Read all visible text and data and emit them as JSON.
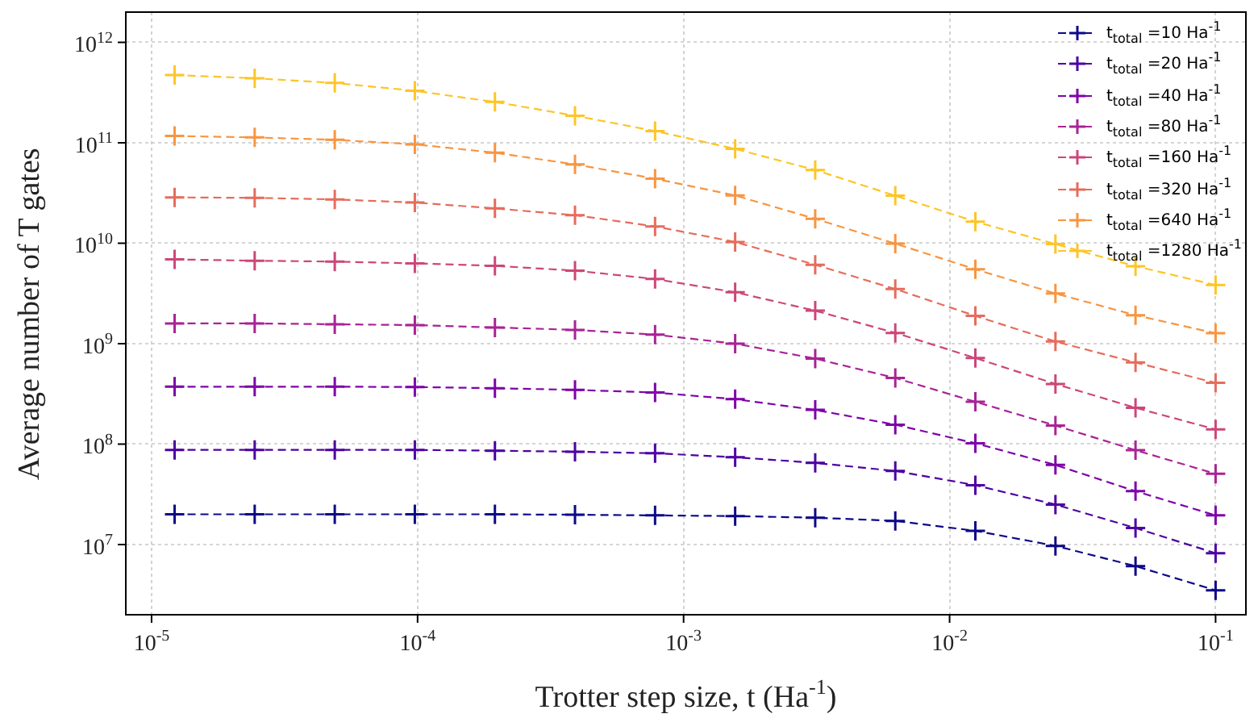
{
  "chart_data": {
    "type": "line",
    "xlabel": "Trotter step size, t (Ha$^{-1}$)",
    "ylabel": "Average number of T gates",
    "x": [
      1.220703125e-05,
      2.44140625e-05,
      4.8828125e-05,
      9.765625e-05,
      0.0001953125,
      0.000390625,
      0.00078125,
      0.0015625,
      0.003125,
      0.00625,
      0.0125,
      0.025,
      0.05,
      0.1
    ],
    "series": [
      {
        "name": "t$_{total}$ =10 Ha$^{-1}$",
        "color": "#0d0887",
        "values": [
          20000000.0,
          20000000.0,
          20000000.0,
          20000000.0,
          20000000.0,
          19800000.0,
          19500000.0,
          19200000.0,
          18500000.0,
          17200000.0,
          13700000.0,
          9700000.0,
          6100000.0,
          3500000.0
        ]
      },
      {
        "name": "t$_{total}$ =20 Ha$^{-1}$",
        "color": "#4c02a1",
        "values": [
          87500000.0,
          87500000.0,
          87500000.0,
          87500000.0,
          86000000.0,
          84000000.0,
          81000000.0,
          74000000.0,
          65000000.0,
          54000000.0,
          39000000.0,
          25000000.0,
          14600000.0,
          8200000.0
        ]
      },
      {
        "name": "t$_{total}$ =40 Ha$^{-1}$",
        "color": "#7e03a8",
        "values": [
          373000000.0,
          373000000.0,
          373000000.0,
          370000000.0,
          360000000.0,
          347000000.0,
          326000000.0,
          280000000.0,
          219000000.0,
          156000000.0,
          102000000.0,
          62000000.0,
          34000000.0,
          19500000.0
        ]
      },
      {
        "name": "t$_{total}$ =80 Ha$^{-1}$",
        "color": "#a92395",
        "values": [
          1590000000.0,
          1590000000.0,
          1560000000.0,
          1530000000.0,
          1450000000.0,
          1370000000.0,
          1230000000.0,
          1000000000.0,
          710000000.0,
          455000000.0,
          264000000.0,
          153000000.0,
          87000000.0,
          50600000.0
        ]
      },
      {
        "name": "t$_{total}$ =160 Ha$^{-1}$",
        "color": "#cc4778",
        "values": [
          6900000000.0,
          6700000000.0,
          6560000000.0,
          6300000000.0,
          5950000000.0,
          5340000000.0,
          4400000000.0,
          3250000000.0,
          2130000000.0,
          1280000000.0,
          720000000.0,
          397000000.0,
          230000000.0,
          140000000.0
        ]
      },
      {
        "name": "t$_{total}$ =320 Ha$^{-1}$",
        "color": "#e66c5c",
        "values": [
          28600000000.0,
          28300000000.0,
          27300000000.0,
          25400000000.0,
          22200000000.0,
          19000000000.0,
          14700000000.0,
          10300000000.0,
          6100000000.0,
          3500000000.0,
          1890000000.0,
          1050000000.0,
          650000000.0,
          407000000.0
        ]
      },
      {
        "name": "t$_{total}$ =640 Ha$^{-1}$",
        "color": "#f89540",
        "values": [
          117000000000.0,
          113000000000.0,
          107000000000.0,
          96500000000.0,
          79600000000.0,
          60900000000.0,
          43900000000.0,
          29900000000.0,
          17500000000.0,
          9900000000.0,
          5500000000.0,
          3160000000.0,
          1920000000.0,
          1270000000.0
        ]
      },
      {
        "name": "t$_{total}$ =1280 Ha$^{-1}$",
        "color": "#fdc527",
        "values": [
          472000000000.0,
          439000000000.0,
          394000000000.0,
          329000000000.0,
          255000000000.0,
          186000000000.0,
          131000000000.0,
          87000000000.0,
          53600000000.0,
          29700000000.0,
          16400000000.0,
          9800000000.0,
          5900000000.0,
          3840000000.0
        ]
      }
    ],
    "log": "xy",
    "xlim": [
      8e-06,
      0.13
    ],
    "ylim": [
      2000000.0,
      2000000000000.0
    ],
    "xticks": [
      {
        "value": 1e-05,
        "label": "10$^{-5}$"
      },
      {
        "value": 0.0001,
        "label": "10$^{-4}$"
      },
      {
        "value": 0.001,
        "label": "10$^{-3}$"
      },
      {
        "value": 0.01,
        "label": "10$^{-2}$"
      },
      {
        "value": 0.1,
        "label": "10$^{-1}$"
      }
    ],
    "yticks": [
      {
        "value": 10000000.0,
        "label": "10$^{7}$"
      },
      {
        "value": 100000000.0,
        "label": "10$^{8}$"
      },
      {
        "value": 1000000000.0,
        "label": "10$^{9}$"
      },
      {
        "value": 10000000000.0,
        "label": "10$^{10}$"
      },
      {
        "value": 100000000000.0,
        "label": "10$^{11}$"
      },
      {
        "value": 1000000000000.0,
        "label": "10$^{12}$"
      }
    ],
    "grid": true,
    "legend": "top right",
    "marker": "cross",
    "line_style": "dashed"
  }
}
